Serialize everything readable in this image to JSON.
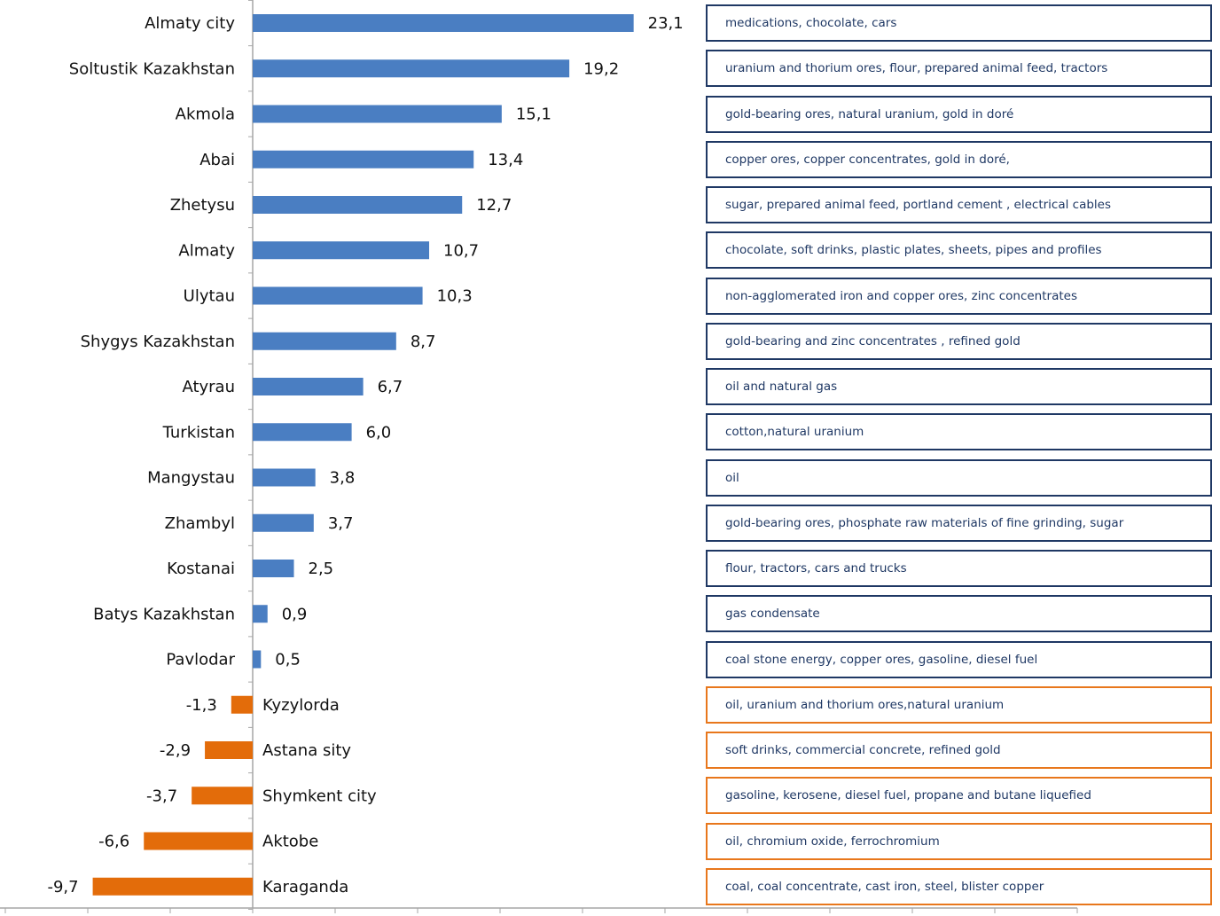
{
  "chart_data": {
    "type": "bar",
    "orientation": "horizontal",
    "title": "",
    "xlabel": "",
    "ylabel": "",
    "xlim": [
      -20,
      50
    ],
    "grid": false,
    "colors": {
      "positive": "#4a7ec2",
      "negative": "#e36c0a",
      "box_positive": "#1f3864",
      "box_negative": "#e8771c"
    },
    "categories": [
      "Almaty city",
      "Soltustik Kazakhstan",
      "Akmola",
      "Abai",
      "Zhetysu",
      "Almaty",
      "Ulytau",
      "Shygys Kazakhstan",
      "Atyrau",
      "Turkistan",
      "Mangystau",
      "Zhambyl",
      "Kostanai",
      "Batys Kazakhstan",
      "Pavlodar",
      "Kyzylorda",
      "Astana sity",
      "Shymkent city",
      "Aktobe",
      "Karaganda"
    ],
    "values": [
      23.1,
      19.2,
      15.1,
      13.4,
      12.7,
      10.7,
      10.3,
      8.7,
      6.7,
      6.0,
      3.8,
      3.7,
      2.5,
      0.9,
      0.5,
      -1.3,
      -2.9,
      -3.7,
      -6.6,
      -9.7
    ],
    "value_labels": [
      "23,1",
      "19,2",
      "15,1",
      "13,4",
      "12,7",
      "10,7",
      "10,3",
      "8,7",
      "6,7",
      "6,0",
      "3,8",
      "3,7",
      "2,5",
      "0,9",
      "0,5",
      "-1,3",
      "-2,9",
      "-3,7",
      "-6,6",
      "-9,7"
    ],
    "annotations": [
      "medications, chocolate, cars",
      "uranium and thorium ores, flour, prepared animal feed, tractors",
      "gold-bearing ores, natural uranium, gold in doré",
      "copper ores, copper concentrates, gold in doré,",
      "sugar, prepared animal feed, portland cement , electrical cables",
      "chocolate, soft drinks,  plastic plates, sheets, pipes and profiles",
      "non-agglomerated iron and copper ores, zinc concentrates",
      "gold-bearing and zinc concentrates , refined gold",
      "oil and natural gas",
      "cotton,natural uranium",
      "oil",
      "gold-bearing ores, phosphate raw materials of fine grinding, sugar",
      "flour, tractors, cars and trucks",
      "gas condensate",
      "coal stone energy, copper ores, gasoline, diesel fuel",
      "oil, uranium and thorium ores,natural uranium",
      "soft drinks, commercial concrete, refined gold",
      "gasoline, kerosene,  diesel fuel,  propane and butane liquefied",
      "oil, chromium oxide, ferrochromium",
      "coal, coal concentrate, cast iron, steel, blister copper"
    ]
  }
}
